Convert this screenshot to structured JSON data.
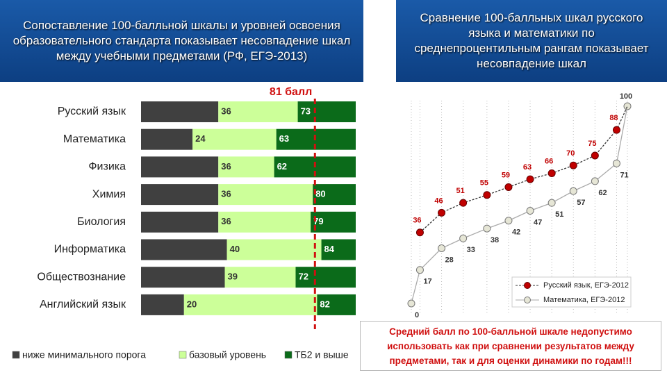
{
  "chart_data": [
    {
      "type": "rangebar",
      "title": "Сопоставление 100-балльной шкалы и уровней освоения образовательного стандарта показывает несовпадение шкал между учебными предметами (РФ, ЕГЭ-2013)",
      "categories": [
        "Русский язык",
        "Математика",
        "Физика",
        "Химия",
        "Биология",
        "Информатика",
        "Обществознание",
        "Английский язык"
      ],
      "min_scores": [
        36,
        24,
        36,
        36,
        36,
        40,
        39,
        20
      ],
      "tb2_scores": [
        73,
        63,
        62,
        80,
        79,
        84,
        72,
        82
      ],
      "legend": [
        {
          "name": "ниже минимального порога",
          "color": "#404040"
        },
        {
          "name": "базовый уровень",
          "color": "#ccff99"
        },
        {
          "name": "ТБ2 и выше",
          "color": "#0b6b1a"
        }
      ],
      "xlim": [
        0,
        100
      ],
      "threshold": {
        "value": 81,
        "label": "81 балл",
        "color": "#d01010"
      }
    },
    {
      "type": "line",
      "title": "Сравнение 100-балльных шкал русского языка и математики по среднепроцентильным рангам показывает несовпадение шкал",
      "x": [
        0,
        4,
        14,
        24,
        35,
        45,
        55,
        65,
        75,
        85,
        95,
        100
      ],
      "xlim": [
        0,
        100
      ],
      "ylim": [
        0,
        100
      ],
      "grid": true,
      "series": [
        {
          "name": "Русский язык, ЕГЭ-2012",
          "color": "#c00000",
          "values": [
            null,
            36,
            46,
            51,
            55,
            59,
            63,
            66,
            70,
            75,
            88,
            100
          ]
        },
        {
          "name": "Математика, ЕГЭ-2012",
          "color": "#e6e6d6",
          "values": [
            0,
            17,
            28,
            33,
            38,
            42,
            47,
            51,
            57,
            62,
            71,
            100
          ]
        }
      ]
    }
  ],
  "note": "Средний балл по 100-балльной шкале недопустимо использовать как при сравнении результатов между предметами, так и для оценки динамики по годам!!!"
}
